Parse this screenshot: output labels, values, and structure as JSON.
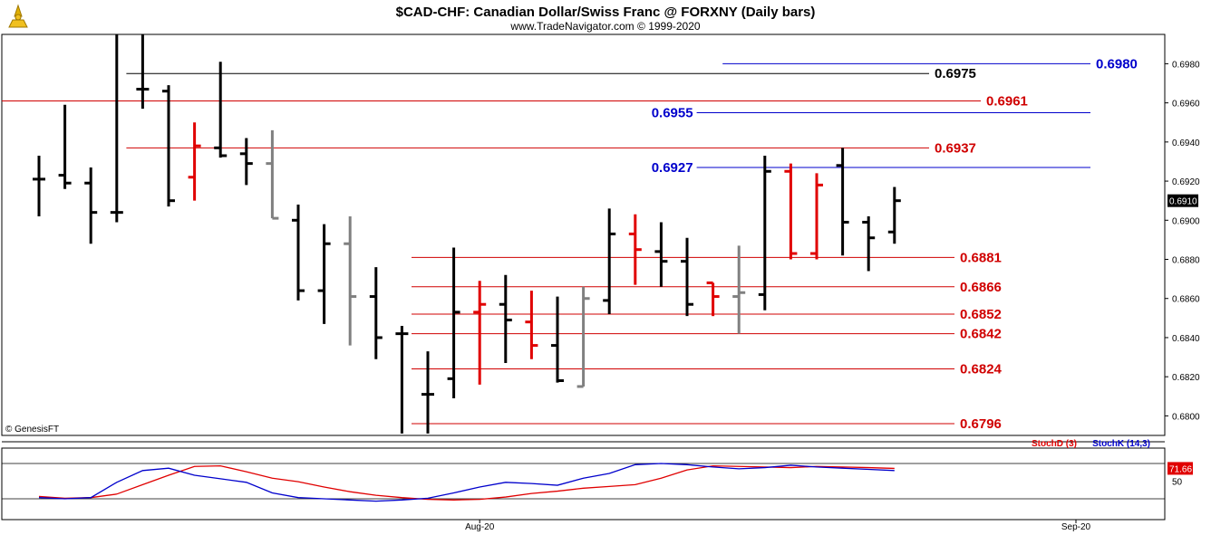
{
  "header": {
    "title": "$CAD-CHF:  Canadian Dollar/Swiss Franc @ FORXNY  (Daily bars)",
    "subtitle": "www.TradeNavigator.com © 1999-2020",
    "copyright": "© GenesisFT"
  },
  "colors": {
    "up": "#000000",
    "down": "#e00000",
    "neutral": "#808080",
    "support_line": "#d00000",
    "blue_line": "#0000cc",
    "stoch_d": "#e00000",
    "stoch_k": "#0000cc"
  },
  "chart_data": [
    {
      "type": "ohlc",
      "title": "$CAD-CHF:  Canadian Dollar/Swiss Franc @ FORXNY  (Daily bars)",
      "ylim": [
        0.679,
        0.6995
      ],
      "y_ticks": [
        "0.6980",
        "0.6960",
        "0.6940",
        "0.6920",
        "0.6900",
        "0.6880",
        "0.6860",
        "0.6840",
        "0.6820",
        "0.6800"
      ],
      "x_labels": [
        {
          "label": "Aug-20",
          "bar": 17
        },
        {
          "label": "Sep-20",
          "bar": 40
        }
      ],
      "last_price": "0.6910",
      "bars": [
        {
          "h": 0.6933,
          "l": 0.6902,
          "o": 0.6921,
          "c": 0.6921,
          "col": "black"
        },
        {
          "h": 0.6959,
          "l": 0.6916,
          "o": 0.6923,
          "c": 0.6919,
          "col": "black"
        },
        {
          "h": 0.6927,
          "l": 0.6888,
          "o": 0.6919,
          "c": 0.6904,
          "col": "black"
        },
        {
          "h": 0.6995,
          "l": 0.6899,
          "o": 0.6904,
          "c": 0.6904,
          "col": "black"
        },
        {
          "h": 0.6995,
          "l": 0.6957,
          "o": 0.6967,
          "c": 0.6967,
          "col": "black"
        },
        {
          "h": 0.6969,
          "l": 0.6907,
          "o": 0.6966,
          "c": 0.691,
          "col": "black"
        },
        {
          "h": 0.695,
          "l": 0.691,
          "o": 0.6922,
          "c": 0.6938,
          "col": "red"
        },
        {
          "h": 0.6981,
          "l": 0.6932,
          "o": 0.6937,
          "c": 0.6933,
          "col": "black"
        },
        {
          "h": 0.6942,
          "l": 0.6918,
          "o": 0.6934,
          "c": 0.6929,
          "col": "black"
        },
        {
          "h": 0.6946,
          "l": 0.6901,
          "o": 0.6929,
          "c": 0.6901,
          "col": "gray"
        },
        {
          "h": 0.6908,
          "l": 0.6859,
          "o": 0.69,
          "c": 0.6864,
          "col": "black"
        },
        {
          "h": 0.6898,
          "l": 0.6847,
          "o": 0.6864,
          "c": 0.6888,
          "col": "black"
        },
        {
          "h": 0.6902,
          "l": 0.6836,
          "o": 0.6888,
          "c": 0.6861,
          "col": "gray"
        },
        {
          "h": 0.6876,
          "l": 0.6829,
          "o": 0.6861,
          "c": 0.684,
          "col": "black"
        },
        {
          "h": 0.6846,
          "l": 0.6791,
          "o": 0.6842,
          "c": 0.6842,
          "col": "black"
        },
        {
          "h": 0.6833,
          "l": 0.6791,
          "o": 0.6811,
          "c": 0.6811,
          "col": "black"
        },
        {
          "h": 0.6886,
          "l": 0.6809,
          "o": 0.6819,
          "c": 0.6853,
          "col": "black"
        },
        {
          "h": 0.6869,
          "l": 0.6816,
          "o": 0.6853,
          "c": 0.6857,
          "col": "red"
        },
        {
          "h": 0.6872,
          "l": 0.6827,
          "o": 0.6857,
          "c": 0.6849,
          "col": "black"
        },
        {
          "h": 0.6864,
          "l": 0.6829,
          "o": 0.6848,
          "c": 0.6836,
          "col": "red"
        },
        {
          "h": 0.6861,
          "l": 0.6817,
          "o": 0.6836,
          "c": 0.6818,
          "col": "black"
        },
        {
          "h": 0.6866,
          "l": 0.6815,
          "o": 0.6815,
          "c": 0.686,
          "col": "gray"
        },
        {
          "h": 0.6906,
          "l": 0.6852,
          "o": 0.6859,
          "c": 0.6893,
          "col": "black"
        },
        {
          "h": 0.6903,
          "l": 0.6867,
          "o": 0.6893,
          "c": 0.6885,
          "col": "red"
        },
        {
          "h": 0.6899,
          "l": 0.6866,
          "o": 0.6884,
          "c": 0.6879,
          "col": "black"
        },
        {
          "h": 0.6891,
          "l": 0.6851,
          "o": 0.6879,
          "c": 0.6857,
          "col": "black"
        },
        {
          "h": 0.6868,
          "l": 0.6851,
          "o": 0.6868,
          "c": 0.6861,
          "col": "red"
        },
        {
          "h": 0.6887,
          "l": 0.6842,
          "o": 0.6861,
          "c": 0.6863,
          "col": "gray"
        },
        {
          "h": 0.6933,
          "l": 0.6854,
          "o": 0.6862,
          "c": 0.6925,
          "col": "black"
        },
        {
          "h": 0.6929,
          "l": 0.688,
          "o": 0.6925,
          "c": 0.6883,
          "col": "red"
        },
        {
          "h": 0.6924,
          "l": 0.688,
          "o": 0.6883,
          "c": 0.6918,
          "col": "red"
        },
        {
          "h": 0.6937,
          "l": 0.6882,
          "o": 0.6928,
          "c": 0.6899,
          "col": "black"
        },
        {
          "h": 0.6902,
          "l": 0.6874,
          "o": 0.6899,
          "c": 0.6891,
          "col": "black"
        },
        {
          "h": 0.6917,
          "l": 0.6888,
          "o": 0.6894,
          "c": 0.691,
          "col": "black"
        }
      ],
      "levels": [
        {
          "value": 0.698,
          "label": "0.6980",
          "color": "blue",
          "from_bar": 27,
          "to": "axis"
        },
        {
          "value": 0.6975,
          "label": "0.6975",
          "color": "black",
          "from_bar": 4,
          "to": "mid"
        },
        {
          "value": 0.6961,
          "label": "0.6961",
          "color": "red",
          "from_bar": 0,
          "to": "mid"
        },
        {
          "value": 0.6955,
          "label": "0.6955",
          "color": "blue",
          "from_bar": 26,
          "to": "axis",
          "label_left": true
        },
        {
          "value": 0.6937,
          "label": "0.6937",
          "color": "red",
          "from_bar": 4,
          "to": "mid"
        },
        {
          "value": 0.6927,
          "label": "0.6927",
          "color": "blue",
          "from_bar": 26,
          "to": "axis",
          "label_left": true
        },
        {
          "value": 0.6881,
          "label": "0.6881",
          "color": "red",
          "from_bar": 15,
          "to": "near"
        },
        {
          "value": 0.6866,
          "label": "0.6866",
          "color": "red",
          "from_bar": 15,
          "to": "near"
        },
        {
          "value": 0.6852,
          "label": "0.6852",
          "color": "red",
          "from_bar": 15,
          "to": "near"
        },
        {
          "value": 0.6842,
          "label": "0.6842",
          "color": "red",
          "from_bar": 15,
          "to": "near"
        },
        {
          "value": 0.6824,
          "label": "0.6824",
          "color": "red",
          "from_bar": 15,
          "to": "near"
        },
        {
          "value": 0.6796,
          "label": "0.6796",
          "color": "red",
          "from_bar": 15,
          "to": "near"
        }
      ]
    },
    {
      "type": "line",
      "title": "Stochastic",
      "ylim": [
        0,
        100
      ],
      "y_ticks": [
        "50"
      ],
      "last_value": "71.66",
      "series": [
        {
          "name": "StochD (3)",
          "color": "red",
          "values": [
            24,
            21,
            22,
            28,
            44,
            60,
            75,
            76,
            66,
            55,
            49,
            40,
            32,
            26,
            22,
            19,
            18,
            19,
            23,
            29,
            33,
            38,
            41,
            44,
            55,
            69,
            76,
            75,
            74,
            73,
            75,
            74,
            73,
            71.66
          ]
        },
        {
          "name": "StochK (14,3)",
          "color": "blue",
          "values": [
            22,
            20,
            22,
            48,
            68,
            72,
            60,
            54,
            48,
            30,
            22,
            20,
            18,
            16,
            18,
            21,
            30,
            40,
            48,
            46,
            43,
            55,
            63,
            78,
            80,
            78,
            74,
            71,
            73,
            77,
            74,
            72,
            70,
            68
          ]
        }
      ]
    }
  ]
}
